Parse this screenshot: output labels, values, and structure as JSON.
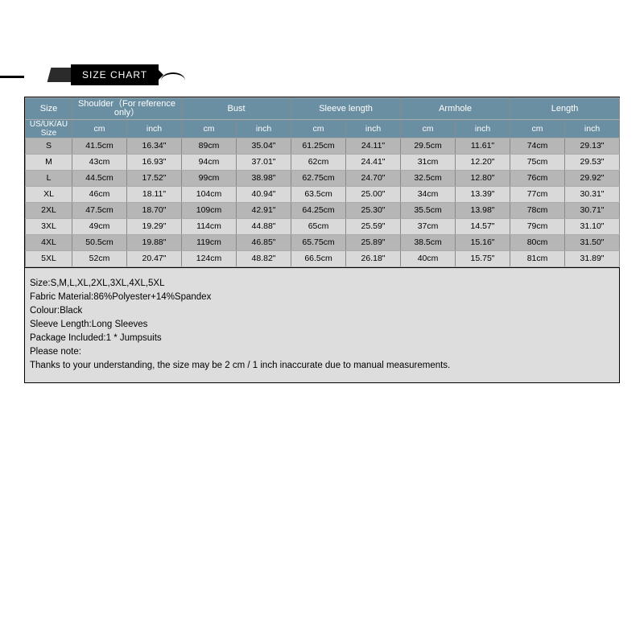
{
  "banner": {
    "title": "SIZE CHART"
  },
  "table": {
    "type": "table",
    "header_bg": "#6a8fa3",
    "header_text_color": "#ffffff",
    "row_odd_bg": "#b6b6b6",
    "row_even_bg": "#d9d9d9",
    "border_color": "#8a8a8a",
    "groups": [
      {
        "label": "Size",
        "sub": [
          "US/UK/AU Size"
        ],
        "single": true
      },
      {
        "label": "Shoulder（For reference only）",
        "sub": [
          "cm",
          "inch"
        ]
      },
      {
        "label": "Bust",
        "sub": [
          "cm",
          "inch"
        ]
      },
      {
        "label": "Sleeve length",
        "sub": [
          "cm",
          "inch"
        ]
      },
      {
        "label": "Armhole",
        "sub": [
          "cm",
          "inch"
        ]
      },
      {
        "label": "Length",
        "sub": [
          "cm",
          "inch"
        ]
      }
    ],
    "rows": [
      {
        "size": "S",
        "cells": [
          "41.5cm",
          "16.34\"",
          "89cm",
          "35.04\"",
          "61.25cm",
          "24.11\"",
          "29.5cm",
          "11.61\"",
          "74cm",
          "29.13\""
        ]
      },
      {
        "size": "M",
        "cells": [
          "43cm",
          "16.93\"",
          "94cm",
          "37.01\"",
          "62cm",
          "24.41\"",
          "31cm",
          "12.20\"",
          "75cm",
          "29.53\""
        ]
      },
      {
        "size": "L",
        "cells": [
          "44.5cm",
          "17.52\"",
          "99cm",
          "38.98\"",
          "62.75cm",
          "24.70\"",
          "32.5cm",
          "12.80\"",
          "76cm",
          "29.92\""
        ]
      },
      {
        "size": "XL",
        "cells": [
          "46cm",
          "18.11\"",
          "104cm",
          "40.94\"",
          "63.5cm",
          "25.00\"",
          "34cm",
          "13.39\"",
          "77cm",
          "30.31\""
        ]
      },
      {
        "size": "2XL",
        "cells": [
          "47.5cm",
          "18.70\"",
          "109cm",
          "42.91\"",
          "64.25cm",
          "25.30\"",
          "35.5cm",
          "13.98\"",
          "78cm",
          "30.71\""
        ]
      },
      {
        "size": "3XL",
        "cells": [
          "49cm",
          "19.29\"",
          "114cm",
          "44.88\"",
          "65cm",
          "25.59\"",
          "37cm",
          "14.57\"",
          "79cm",
          "31.10\""
        ]
      },
      {
        "size": "4XL",
        "cells": [
          "50.5cm",
          "19.88\"",
          "119cm",
          "46.85\"",
          "65.75cm",
          "25.89\"",
          "38.5cm",
          "15.16\"",
          "80cm",
          "31.50\""
        ]
      },
      {
        "size": "5XL",
        "cells": [
          "52cm",
          "20.47\"",
          "124cm",
          "48.82\"",
          "66.5cm",
          "26.18\"",
          "40cm",
          "15.75\"",
          "81cm",
          "31.89\""
        ]
      }
    ]
  },
  "notes": {
    "background_color": "#dddddd",
    "lines": [
      "Size:S,M,L,XL,2XL,3XL,4XL,5XL",
      "Fabric Material:86%Polyester+14%Spandex",
      "Colour:Black",
      "Sleeve Length:Long Sleeves",
      "Package Included:1 * Jumpsuits",
      "Please note:",
      "Thanks to your understanding, the size may be 2 cm / 1 inch inaccurate due to manual measurements."
    ]
  }
}
